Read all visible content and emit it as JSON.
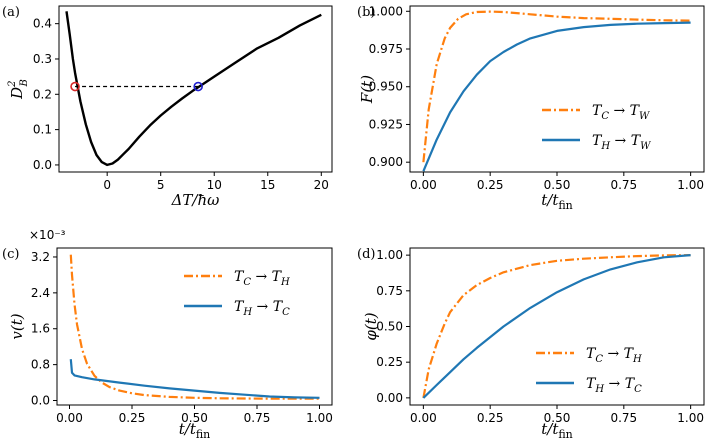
{
  "colors": {
    "orange": "#ff7f0e",
    "blue": "#1f77b4",
    "black": "#000000",
    "red": "#d62728",
    "marker_blue": "#1f1fd0"
  },
  "chart_data": [
    {
      "id": "a",
      "panel_label": "(a)",
      "type": "line",
      "xlabel": "ΔT/ħω",
      "ylabel": "D²_B",
      "ylabel_main": "D",
      "ylabel_sup": "2",
      "ylabel_sub": "B",
      "xlim": [
        -4.5,
        21
      ],
      "ylim": [
        -0.02,
        0.45
      ],
      "xticks": [
        0,
        5,
        10,
        15,
        20
      ],
      "xtick_labels": [
        "0",
        "5",
        "10",
        "15",
        "20"
      ],
      "yticks": [
        0.0,
        0.1,
        0.2,
        0.3,
        0.4
      ],
      "ytick_labels": [
        "0.0",
        "0.1",
        "0.2",
        "0.3",
        "0.4"
      ],
      "series": [
        {
          "color": "black",
          "style": "solid",
          "x": [
            -3.8,
            -3.5,
            -3.2,
            -3.0,
            -2.5,
            -2.0,
            -1.5,
            -1.0,
            -0.5,
            0,
            0.5,
            1,
            1.5,
            2,
            3,
            4,
            5,
            6,
            7,
            8,
            8.5,
            9,
            10,
            12,
            14,
            16,
            18,
            20
          ],
          "y": [
            0.435,
            0.37,
            0.3,
            0.26,
            0.18,
            0.115,
            0.065,
            0.028,
            0.008,
            0.0,
            0.004,
            0.015,
            0.03,
            0.045,
            0.08,
            0.112,
            0.14,
            0.165,
            0.188,
            0.21,
            0.22,
            0.23,
            0.25,
            0.29,
            0.33,
            0.36,
            0.395,
            0.425
          ]
        }
      ],
      "dashed_line": {
        "x": [
          -3.0,
          8.5
        ],
        "y": [
          0.222,
          0.222
        ]
      },
      "markers": [
        {
          "x": -3.0,
          "y": 0.222,
          "color": "red"
        },
        {
          "x": 8.5,
          "y": 0.222,
          "color": "marker_blue"
        }
      ]
    },
    {
      "id": "b",
      "panel_label": "(b)",
      "type": "line",
      "xlabel": "t/t_fin",
      "ylabel": "F(t)",
      "xlim": [
        -0.05,
        1.05
      ],
      "ylim": [
        0.8935,
        1.0035
      ],
      "xticks": [
        0,
        0.25,
        0.5,
        0.75,
        1.0
      ],
      "xtick_labels": [
        "0.00",
        "0.25",
        "0.50",
        "0.75",
        "1.00"
      ],
      "yticks": [
        0.9,
        0.925,
        0.95,
        0.975,
        1.0
      ],
      "ytick_labels": [
        "0.900",
        "0.925",
        "0.950",
        "0.975",
        "1.000"
      ],
      "legend_position": "lower right",
      "series": [
        {
          "label": "T_C → T_W",
          "color": "orange",
          "style": "dashdot",
          "x": [
            0,
            0.02,
            0.05,
            0.08,
            0.1,
            0.13,
            0.16,
            0.2,
            0.25,
            0.3,
            0.4,
            0.5,
            0.6,
            0.7,
            0.8,
            0.9,
            1.0
          ],
          "y": [
            0.9,
            0.935,
            0.965,
            0.982,
            0.989,
            0.995,
            0.998,
            0.9995,
            0.9998,
            0.9995,
            0.998,
            0.9965,
            0.9955,
            0.995,
            0.9945,
            0.994,
            0.9938
          ]
        },
        {
          "label": "T_H → T_W",
          "color": "blue",
          "style": "solid",
          "x": [
            0,
            0.05,
            0.1,
            0.15,
            0.2,
            0.25,
            0.3,
            0.35,
            0.4,
            0.5,
            0.6,
            0.7,
            0.8,
            0.9,
            1.0
          ],
          "y": [
            0.894,
            0.915,
            0.933,
            0.947,
            0.958,
            0.967,
            0.973,
            0.978,
            0.982,
            0.987,
            0.9895,
            0.991,
            0.9918,
            0.9922,
            0.9925
          ]
        }
      ]
    },
    {
      "id": "c",
      "panel_label": "(c)",
      "type": "line",
      "xlabel": "t/t_fin",
      "ylabel": "v(t)",
      "scale_label": "×10⁻³",
      "xlim": [
        -0.05,
        1.05
      ],
      "ylim": [
        -0.1,
        3.4
      ],
      "xticks": [
        0,
        0.25,
        0.5,
        0.75,
        1.0
      ],
      "xtick_labels": [
        "0.00",
        "0.25",
        "0.50",
        "0.75",
        "1.00"
      ],
      "yticks": [
        0.0,
        0.8,
        1.6,
        2.4,
        3.2
      ],
      "ytick_labels": [
        "0.0",
        "0.8",
        "1.6",
        "2.4",
        "3.2"
      ],
      "legend_position": "upper right",
      "series": [
        {
          "label": "T_C → T_H",
          "color": "orange",
          "style": "dashdot",
          "x": [
            0.005,
            0.01,
            0.02,
            0.03,
            0.05,
            0.07,
            0.1,
            0.13,
            0.16,
            0.2,
            0.25,
            0.3,
            0.4,
            0.5,
            0.6,
            0.7,
            0.8,
            0.9,
            1.0
          ],
          "y": [
            3.25,
            2.8,
            2.15,
            1.7,
            1.15,
            0.82,
            0.55,
            0.4,
            0.3,
            0.22,
            0.16,
            0.12,
            0.08,
            0.06,
            0.05,
            0.045,
            0.04,
            0.04,
            0.04
          ]
        },
        {
          "label": "T_H → T_C",
          "color": "blue",
          "style": "solid",
          "x": [
            0.005,
            0.01,
            0.02,
            0.05,
            0.1,
            0.2,
            0.3,
            0.4,
            0.5,
            0.6,
            0.7,
            0.8,
            0.9,
            1.0
          ],
          "y": [
            0.92,
            0.62,
            0.56,
            0.52,
            0.47,
            0.4,
            0.33,
            0.27,
            0.22,
            0.17,
            0.13,
            0.09,
            0.07,
            0.06
          ]
        }
      ]
    },
    {
      "id": "d",
      "panel_label": "(d)",
      "type": "line",
      "xlabel": "t/t_fin",
      "ylabel": "φ(t)",
      "xlim": [
        -0.05,
        1.05
      ],
      "ylim": [
        -0.05,
        1.05
      ],
      "xticks": [
        0,
        0.25,
        0.5,
        0.75,
        1.0
      ],
      "xtick_labels": [
        "0.00",
        "0.25",
        "0.50",
        "0.75",
        "1.00"
      ],
      "yticks": [
        0,
        0.25,
        0.5,
        0.75,
        1.0
      ],
      "ytick_labels": [
        "0.00",
        "0.25",
        "0.50",
        "0.75",
        "1.00"
      ],
      "legend_position": "lower right",
      "series": [
        {
          "label": "T_C → T_H",
          "color": "orange",
          "style": "dashdot",
          "x": [
            0,
            0.02,
            0.05,
            0.08,
            0.1,
            0.15,
            0.2,
            0.25,
            0.3,
            0.4,
            0.5,
            0.6,
            0.7,
            0.8,
            0.9,
            1.0
          ],
          "y": [
            0,
            0.2,
            0.38,
            0.52,
            0.6,
            0.72,
            0.79,
            0.84,
            0.88,
            0.93,
            0.96,
            0.975,
            0.985,
            0.993,
            0.998,
            1.0
          ]
        },
        {
          "label": "T_H → T_C",
          "color": "blue",
          "style": "solid",
          "x": [
            0,
            0.05,
            0.1,
            0.15,
            0.2,
            0.3,
            0.4,
            0.5,
            0.6,
            0.7,
            0.8,
            0.9,
            1.0
          ],
          "y": [
            0,
            0.09,
            0.18,
            0.27,
            0.35,
            0.5,
            0.63,
            0.74,
            0.83,
            0.9,
            0.95,
            0.985,
            1.0
          ]
        }
      ]
    }
  ]
}
